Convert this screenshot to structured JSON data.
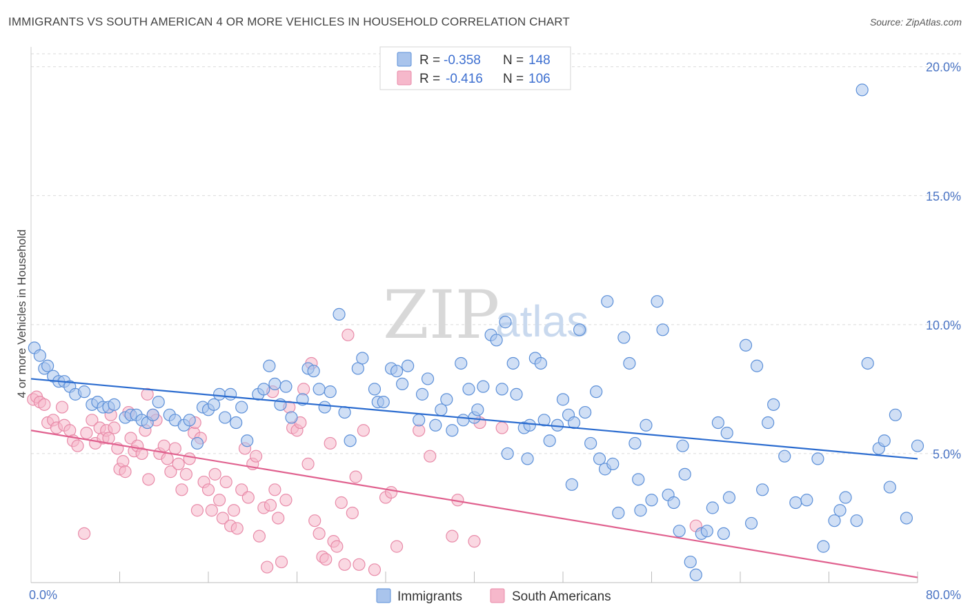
{
  "title": "IMMIGRANTS VS SOUTH AMERICAN 4 OR MORE VEHICLES IN HOUSEHOLD CORRELATION CHART",
  "source": "Source: ZipAtlas.com",
  "watermark": {
    "zip": "ZIP",
    "atlas": "atlas"
  },
  "legend": {
    "rows": [
      {
        "r_label": "R = ",
        "r_value": "-0.358",
        "n_label": "N = ",
        "n_value": "148"
      },
      {
        "r_label": "R = ",
        "r_value": "-0.416",
        "n_label": "N = ",
        "n_value": "106"
      }
    ]
  },
  "colors": {
    "immigrants_fill": "#a9c4ec",
    "immigrants_stroke": "#5b8fd8",
    "immigrants_line": "#2a6bcf",
    "south_fill": "#f6b8cb",
    "south_stroke": "#e88aa8",
    "south_line": "#e0608e",
    "grid": "#d9d9d9",
    "tick_label": "#4a74c4"
  },
  "chart_data": {
    "type": "scatter",
    "title": "IMMIGRANTS VS SOUTH AMERICAN 4 OR MORE VEHICLES IN HOUSEHOLD CORRELATION CHART",
    "xlabel": "",
    "ylabel": "4 or more Vehicles in Household",
    "xlim": [
      0,
      80
    ],
    "ylim": [
      0,
      20.5
    ],
    "x_tick_labels": [
      "0.0%",
      "80.0%"
    ],
    "y_ticks": [
      5,
      10,
      15,
      20
    ],
    "y_tick_labels": [
      "5.0%",
      "10.0%",
      "15.0%",
      "20.0%"
    ],
    "grid": "horizontal dashed",
    "legend_position": "top-center",
    "series": [
      {
        "name": "Immigrants",
        "r": -0.358,
        "n": 148,
        "trend": [
          [
            0,
            7.9
          ],
          [
            80,
            4.8
          ]
        ],
        "points": [
          [
            0.3,
            9.1
          ],
          [
            0.8,
            8.8
          ],
          [
            1.2,
            8.3
          ],
          [
            1.5,
            8.4
          ],
          [
            2.0,
            8.0
          ],
          [
            2.5,
            7.8
          ],
          [
            3.0,
            7.8
          ],
          [
            3.5,
            7.6
          ],
          [
            4.0,
            7.3
          ],
          [
            4.8,
            7.4
          ],
          [
            5.5,
            6.9
          ],
          [
            6.0,
            7.0
          ],
          [
            6.5,
            6.8
          ],
          [
            7.0,
            6.8
          ],
          [
            7.5,
            6.9
          ],
          [
            8.5,
            6.4
          ],
          [
            9.0,
            6.5
          ],
          [
            9.5,
            6.5
          ],
          [
            10.0,
            6.3
          ],
          [
            10.5,
            6.2
          ],
          [
            11.0,
            6.5
          ],
          [
            11.5,
            7.0
          ],
          [
            12.5,
            6.5
          ],
          [
            13.0,
            6.3
          ],
          [
            13.8,
            6.1
          ],
          [
            14.3,
            6.3
          ],
          [
            15.0,
            5.4
          ],
          [
            15.5,
            6.8
          ],
          [
            16.0,
            6.7
          ],
          [
            16.5,
            6.9
          ],
          [
            17.0,
            7.3
          ],
          [
            17.5,
            6.4
          ],
          [
            18.0,
            7.3
          ],
          [
            18.5,
            6.2
          ],
          [
            19.0,
            6.8
          ],
          [
            19.5,
            5.5
          ],
          [
            20.5,
            7.3
          ],
          [
            21.0,
            7.5
          ],
          [
            21.5,
            8.4
          ],
          [
            22.0,
            7.7
          ],
          [
            22.5,
            6.9
          ],
          [
            23.0,
            7.6
          ],
          [
            23.5,
            6.4
          ],
          [
            24.5,
            7.1
          ],
          [
            25.0,
            8.3
          ],
          [
            25.5,
            8.2
          ],
          [
            26.0,
            7.5
          ],
          [
            26.5,
            6.8
          ],
          [
            27.0,
            7.4
          ],
          [
            27.8,
            10.4
          ],
          [
            28.3,
            6.6
          ],
          [
            28.8,
            5.5
          ],
          [
            29.5,
            8.3
          ],
          [
            29.9,
            8.7
          ],
          [
            31.0,
            7.5
          ],
          [
            31.3,
            7.0
          ],
          [
            31.8,
            7.0
          ],
          [
            32.5,
            8.3
          ],
          [
            33.0,
            8.2
          ],
          [
            33.5,
            7.7
          ],
          [
            34.0,
            8.4
          ],
          [
            35.0,
            6.3
          ],
          [
            35.3,
            7.3
          ],
          [
            35.8,
            7.9
          ],
          [
            36.5,
            6.1
          ],
          [
            37.0,
            6.7
          ],
          [
            37.5,
            7.1
          ],
          [
            38.0,
            5.9
          ],
          [
            38.8,
            8.5
          ],
          [
            39.0,
            6.3
          ],
          [
            39.5,
            7.5
          ],
          [
            40.0,
            6.4
          ],
          [
            40.3,
            6.7
          ],
          [
            40.8,
            7.6
          ],
          [
            41.5,
            9.6
          ],
          [
            42.0,
            9.4
          ],
          [
            42.5,
            7.5
          ],
          [
            42.8,
            10.1
          ],
          [
            43.0,
            5.0
          ],
          [
            43.5,
            8.5
          ],
          [
            43.8,
            7.3
          ],
          [
            44.5,
            6.0
          ],
          [
            45.0,
            6.1
          ],
          [
            45.5,
            8.7
          ],
          [
            46.0,
            8.5
          ],
          [
            46.3,
            6.3
          ],
          [
            46.8,
            5.5
          ],
          [
            47.5,
            6.1
          ],
          [
            48.0,
            7.1
          ],
          [
            48.5,
            6.5
          ],
          [
            49.0,
            6.2
          ],
          [
            49.5,
            9.8
          ],
          [
            50.0,
            6.6
          ],
          [
            50.5,
            5.4
          ],
          [
            51.0,
            7.4
          ],
          [
            51.3,
            4.8
          ],
          [
            51.8,
            4.4
          ],
          [
            52.0,
            10.9
          ],
          [
            52.5,
            4.6
          ],
          [
            53.0,
            2.7
          ],
          [
            53.5,
            9.5
          ],
          [
            54.0,
            8.5
          ],
          [
            54.5,
            5.4
          ],
          [
            55.0,
            2.8
          ],
          [
            55.5,
            6.1
          ],
          [
            56.0,
            3.2
          ],
          [
            56.5,
            10.9
          ],
          [
            57.0,
            9.8
          ],
          [
            57.5,
            3.4
          ],
          [
            58.0,
            3.1
          ],
          [
            58.5,
            2.0
          ],
          [
            59.0,
            4.2
          ],
          [
            59.5,
            0.8
          ],
          [
            60.0,
            0.3
          ],
          [
            60.5,
            1.9
          ],
          [
            61.0,
            2.0
          ],
          [
            61.5,
            2.9
          ],
          [
            62.0,
            6.2
          ],
          [
            62.5,
            1.9
          ],
          [
            63.0,
            3.3
          ],
          [
            64.5,
            9.2
          ],
          [
            65.0,
            2.3
          ],
          [
            65.5,
            8.4
          ],
          [
            66.0,
            3.6
          ],
          [
            67.0,
            6.9
          ],
          [
            68.0,
            4.9
          ],
          [
            69.0,
            3.1
          ],
          [
            70.0,
            3.2
          ],
          [
            71.0,
            4.8
          ],
          [
            71.5,
            1.4
          ],
          [
            72.5,
            2.4
          ],
          [
            73.0,
            2.8
          ],
          [
            73.5,
            3.3
          ],
          [
            74.5,
            2.4
          ],
          [
            75.0,
            19.1
          ],
          [
            75.5,
            8.5
          ],
          [
            76.5,
            5.2
          ],
          [
            77.0,
            5.5
          ],
          [
            77.5,
            3.7
          ],
          [
            78.0,
            6.5
          ],
          [
            79.0,
            2.5
          ],
          [
            80.0,
            5.3
          ],
          [
            66.5,
            6.2
          ],
          [
            62.8,
            5.8
          ],
          [
            58.8,
            5.3
          ],
          [
            54.8,
            4.0
          ],
          [
            48.8,
            3.8
          ],
          [
            44.8,
            4.8
          ]
        ]
      },
      {
        "name": "South Americans",
        "r": -0.416,
        "n": 106,
        "trend": [
          [
            0,
            5.9
          ],
          [
            80,
            0.2
          ]
        ],
        "points": [
          [
            0.2,
            7.1
          ],
          [
            0.5,
            7.2
          ],
          [
            0.8,
            7.0
          ],
          [
            1.2,
            6.9
          ],
          [
            1.5,
            6.2
          ],
          [
            2.0,
            6.3
          ],
          [
            2.3,
            6.0
          ],
          [
            2.8,
            6.8
          ],
          [
            3.0,
            6.1
          ],
          [
            3.5,
            5.9
          ],
          [
            3.8,
            5.5
          ],
          [
            4.2,
            5.3
          ],
          [
            4.8,
            1.9
          ],
          [
            5.0,
            5.8
          ],
          [
            5.5,
            6.3
          ],
          [
            5.8,
            5.4
          ],
          [
            6.2,
            6.0
          ],
          [
            6.5,
            5.6
          ],
          [
            6.8,
            5.9
          ],
          [
            7.0,
            5.6
          ],
          [
            7.2,
            6.5
          ],
          [
            7.5,
            6.0
          ],
          [
            7.8,
            5.2
          ],
          [
            8.0,
            4.4
          ],
          [
            8.3,
            4.7
          ],
          [
            8.5,
            4.3
          ],
          [
            8.8,
            6.6
          ],
          [
            9.0,
            5.6
          ],
          [
            9.3,
            5.1
          ],
          [
            9.6,
            5.3
          ],
          [
            10.0,
            5.0
          ],
          [
            10.3,
            5.9
          ],
          [
            10.6,
            4.0
          ],
          [
            11.0,
            6.5
          ],
          [
            11.3,
            6.3
          ],
          [
            11.6,
            5.0
          ],
          [
            12.0,
            5.3
          ],
          [
            12.3,
            4.8
          ],
          [
            12.6,
            4.3
          ],
          [
            13.0,
            5.2
          ],
          [
            13.3,
            4.6
          ],
          [
            13.6,
            3.6
          ],
          [
            14.0,
            4.2
          ],
          [
            14.3,
            4.8
          ],
          [
            14.7,
            5.8
          ],
          [
            15.0,
            2.8
          ],
          [
            15.3,
            5.6
          ],
          [
            15.6,
            3.9
          ],
          [
            16.0,
            3.6
          ],
          [
            16.3,
            2.8
          ],
          [
            16.6,
            4.2
          ],
          [
            17.0,
            3.2
          ],
          [
            17.3,
            2.5
          ],
          [
            17.6,
            3.9
          ],
          [
            18.0,
            2.2
          ],
          [
            18.3,
            2.8
          ],
          [
            18.6,
            2.1
          ],
          [
            19.0,
            3.6
          ],
          [
            19.3,
            5.2
          ],
          [
            19.6,
            3.3
          ],
          [
            20.0,
            4.6
          ],
          [
            20.3,
            4.9
          ],
          [
            20.6,
            1.8
          ],
          [
            21.0,
            2.9
          ],
          [
            21.3,
            0.6
          ],
          [
            21.6,
            3.0
          ],
          [
            22.0,
            3.6
          ],
          [
            22.3,
            2.5
          ],
          [
            22.6,
            0.8
          ],
          [
            23.0,
            3.2
          ],
          [
            23.3,
            6.8
          ],
          [
            23.6,
            6.0
          ],
          [
            24.0,
            5.9
          ],
          [
            24.3,
            6.2
          ],
          [
            24.6,
            7.5
          ],
          [
            25.0,
            4.6
          ],
          [
            25.3,
            8.5
          ],
          [
            25.6,
            2.4
          ],
          [
            26.0,
            1.9
          ],
          [
            26.3,
            1.0
          ],
          [
            26.6,
            0.9
          ],
          [
            27.0,
            5.4
          ],
          [
            27.3,
            1.6
          ],
          [
            27.6,
            1.4
          ],
          [
            28.0,
            3.1
          ],
          [
            28.3,
            0.7
          ],
          [
            28.6,
            9.6
          ],
          [
            29.0,
            2.7
          ],
          [
            29.3,
            4.1
          ],
          [
            29.6,
            0.7
          ],
          [
            30.0,
            5.9
          ],
          [
            31.0,
            0.5
          ],
          [
            32.0,
            3.3
          ],
          [
            32.5,
            3.5
          ],
          [
            33.0,
            1.4
          ],
          [
            35.0,
            5.9
          ],
          [
            36.0,
            4.9
          ],
          [
            38.0,
            1.8
          ],
          [
            38.5,
            3.2
          ],
          [
            40.0,
            1.6
          ],
          [
            40.5,
            6.2
          ],
          [
            42.5,
            6.0
          ],
          [
            60.0,
            2.2
          ],
          [
            10.5,
            7.3
          ],
          [
            14.8,
            6.2
          ],
          [
            21.8,
            7.4
          ]
        ]
      }
    ]
  },
  "bottom_legend": [
    "Immigrants",
    "South Americans"
  ]
}
